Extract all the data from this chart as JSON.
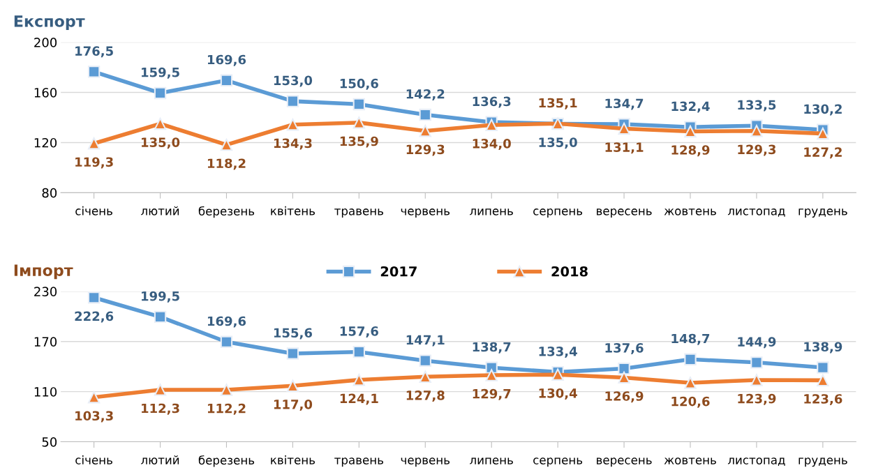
{
  "chart_data": [
    {
      "type": "line",
      "title": "Експорт",
      "categories": [
        "січень",
        "лютий",
        "березень",
        "квітень",
        "травень",
        "червень",
        "липень",
        "серпень",
        "вересень",
        "жовтень",
        "листопад",
        "грудень"
      ],
      "ylim": [
        80,
        200
      ],
      "yticks": [
        80,
        120,
        160,
        200
      ],
      "grid": "y",
      "series": [
        {
          "color": "#5b9bd5",
          "marker": "square",
          "values": [
            176.5,
            159.5,
            169.6,
            153.0,
            150.6,
            142.2,
            136.3,
            135.0,
            134.7,
            132.4,
            133.5,
            130.2
          ],
          "value_labels": [
            "176,5",
            "159,5",
            "169,6",
            "153,0",
            "150,6",
            "142,2",
            "136,3",
            "135,0",
            "134,7",
            "132,4",
            "133,5",
            "130,2"
          ]
        },
        {
          "color": "#ed7d31",
          "marker": "triangle",
          "values": [
            119.3,
            135.0,
            118.2,
            134.3,
            135.9,
            129.3,
            134.0,
            135.1,
            131.1,
            128.9,
            129.3,
            127.2
          ],
          "value_labels": [
            "119,3",
            "135,0",
            "118,2",
            "134,3",
            "135,9",
            "129,3",
            "134,0",
            "135,1",
            "131,1",
            "128,9",
            "129,3",
            "127,2"
          ]
        }
      ]
    },
    {
      "type": "line",
      "title": "Імпорт",
      "categories": [
        "січень",
        "лютий",
        "березень",
        "квітень",
        "травень",
        "червень",
        "липень",
        "серпень",
        "вересень",
        "жовтень",
        "листопад",
        "грудень"
      ],
      "ylim": [
        50,
        230
      ],
      "yticks": [
        50,
        110,
        170,
        230
      ],
      "grid": "y",
      "legend": "top",
      "series": [
        {
          "name": "2017",
          "color": "#5b9bd5",
          "marker": "square",
          "values": [
            222.6,
            199.5,
            169.6,
            155.6,
            157.6,
            147.1,
            138.7,
            133.4,
            137.6,
            148.7,
            144.9,
            138.9
          ],
          "value_labels": [
            "222,6",
            "199,5",
            "169,6",
            "155,6",
            "157,6",
            "147,1",
            "138,7",
            "133,4",
            "137,6",
            "148,7",
            "144,9",
            "138,9"
          ]
        },
        {
          "name": "2018",
          "color": "#ed7d31",
          "marker": "triangle",
          "values": [
            103.3,
            112.3,
            112.2,
            117.0,
            124.1,
            127.8,
            129.7,
            130.4,
            126.9,
            120.6,
            123.9,
            123.6
          ],
          "value_labels": [
            "103,3",
            "112,3",
            "112,2",
            "117,0",
            "124,1",
            "127,8",
            "129,7",
            "130,4",
            "126,9",
            "120,6",
            "123,9",
            "123,6"
          ]
        }
      ]
    }
  ]
}
